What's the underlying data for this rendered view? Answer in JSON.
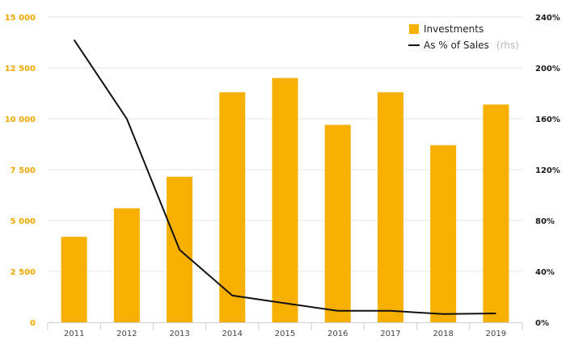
{
  "colors": {
    "bar": "#f8b000",
    "line": "#111111",
    "left_axis_text": "#f0a800",
    "right_axis_text": "#1a1a1a",
    "grid": "#e6e6e6"
  },
  "legend": {
    "placement": "top-right",
    "bar_label": "Investments",
    "line_label": "As % of Sales",
    "line_note": "(rhs)"
  },
  "axes": {
    "left_ticks": [
      "0",
      "2 500",
      "5 000",
      "7 500",
      "10 000",
      "12 500",
      "15 000"
    ],
    "right_ticks": [
      "0%",
      "40%",
      "80%",
      "120%",
      "160%",
      "200%",
      "240%"
    ]
  },
  "chart_data": {
    "type": "bar",
    "categories": [
      "2011",
      "2012",
      "2013",
      "2014",
      "2015",
      "2016",
      "2017",
      "2018",
      "2019"
    ],
    "series": [
      {
        "name": "Investments",
        "type": "bar",
        "axis": "left",
        "values": [
          4200,
          5600,
          7150,
          11300,
          12000,
          9700,
          11300,
          8700,
          10700
        ]
      },
      {
        "name": "As % of Sales",
        "type": "line",
        "axis": "right",
        "values": [
          2.22,
          1.6,
          0.57,
          0.21,
          0.15,
          0.09,
          0.09,
          0.065,
          0.07
        ]
      }
    ],
    "ylim_left": [
      0,
      15000
    ],
    "ylim_right": [
      0,
      2.4
    ],
    "grid": true
  }
}
